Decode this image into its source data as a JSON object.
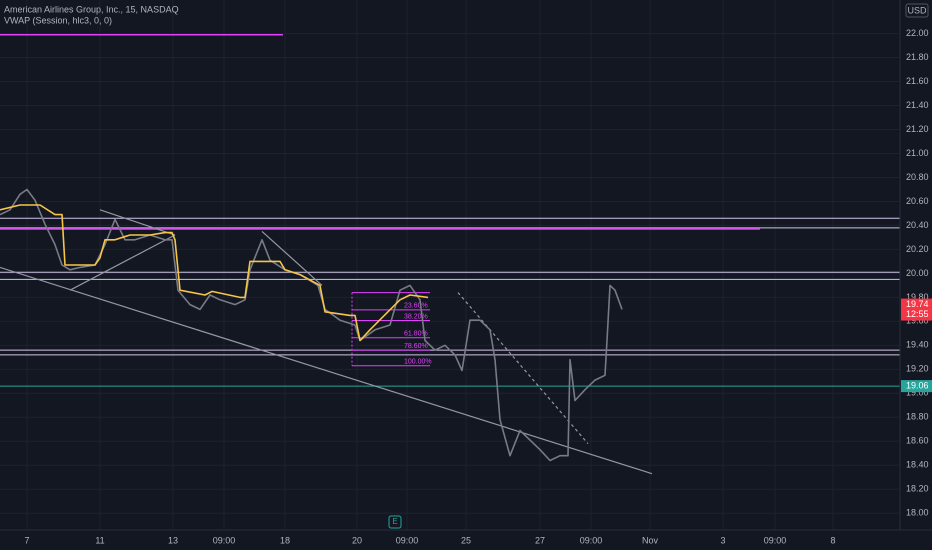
{
  "chart_data": {
    "type": "line",
    "title": "American Airlines Group, Inc., 15, NASDAQ",
    "subtitle": "VWAP (Session, hlc3, 0, 0)",
    "currency": "USD",
    "xlim": [
      0,
      900
    ],
    "ylim": [
      17.86,
      22.28
    ],
    "grid": true,
    "xticks": [
      {
        "value": 27,
        "label": "7"
      },
      {
        "value": 100,
        "label": "11"
      },
      {
        "value": 173,
        "label": "13"
      },
      {
        "value": 224,
        "label": "09:00"
      },
      {
        "value": 285,
        "label": "18"
      },
      {
        "value": 357,
        "label": "20"
      },
      {
        "value": 407,
        "label": "09:00"
      },
      {
        "value": 466,
        "label": "25"
      },
      {
        "value": 540,
        "label": "27"
      },
      {
        "value": 591,
        "label": "09:00"
      },
      {
        "value": 650,
        "label": "Nov"
      },
      {
        "value": 723,
        "label": "3"
      },
      {
        "value": 775,
        "label": "09:00"
      },
      {
        "value": 833,
        "label": "8"
      }
    ],
    "yticks": [
      {
        "value": 18,
        "label": "18.00"
      },
      {
        "value": 18.2,
        "label": "18.20"
      },
      {
        "value": 18.4,
        "label": "18.40"
      },
      {
        "value": 18.6,
        "label": "18.60"
      },
      {
        "value": 18.8,
        "label": "18.80"
      },
      {
        "value": 19,
        "label": "19.00"
      },
      {
        "value": 19.2,
        "label": "19.20"
      },
      {
        "value": 19.4,
        "label": "19.40"
      },
      {
        "value": 19.6,
        "label": "19.60"
      },
      {
        "value": 19.8,
        "label": "19.80"
      },
      {
        "value": 20,
        "label": "20.00"
      },
      {
        "value": 20.2,
        "label": "20.20"
      },
      {
        "value": 20.4,
        "label": "20.40"
      },
      {
        "value": 20.6,
        "label": "20.60"
      },
      {
        "value": 20.8,
        "label": "20.80"
      },
      {
        "value": 21,
        "label": "21.00"
      },
      {
        "value": 21.2,
        "label": "21.20"
      },
      {
        "value": 21.4,
        "label": "21.40"
      },
      {
        "value": 21.6,
        "label": "21.60"
      },
      {
        "value": 21.8,
        "label": "21.80"
      },
      {
        "value": 22,
        "label": "22.00"
      }
    ],
    "series": [
      {
        "color": "#787b86",
        "x": [
          0,
          10,
          20,
          27,
          35,
          45,
          55,
          62,
          70,
          80,
          95,
          105,
          115,
          125,
          135,
          150,
          165,
          172,
          178,
          190,
          200,
          210,
          220,
          235,
          245,
          250,
          262,
          270,
          285,
          300,
          318,
          325,
          340,
          355,
          360,
          375,
          390,
          400,
          410,
          420,
          425,
          435,
          445,
          455,
          462,
          470,
          480,
          490,
          495,
          500,
          510,
          520,
          530,
          540,
          550,
          560,
          568,
          570,
          575,
          585,
          595,
          605,
          607,
          610,
          615,
          622
        ],
        "values": [
          20.49,
          20.53,
          20.66,
          20.7,
          20.61,
          20.41,
          20.24,
          20.07,
          20.03,
          20.05,
          20.07,
          20.24,
          20.45,
          20.28,
          20.28,
          20.32,
          20.28,
          20.28,
          19.86,
          19.74,
          19.7,
          19.82,
          19.78,
          19.74,
          19.78,
          20.03,
          20.28,
          20.11,
          20.03,
          19.99,
          19.9,
          19.7,
          19.61,
          19.57,
          19.44,
          19.53,
          19.57,
          19.86,
          19.9,
          19.78,
          19.44,
          19.36,
          19.4,
          19.32,
          19.19,
          19.61,
          19.61,
          19.53,
          19.28,
          18.78,
          18.48,
          18.69,
          18.61,
          18.53,
          18.44,
          18.48,
          18.48,
          19.28,
          18.94,
          19.03,
          19.11,
          19.15,
          19.44,
          19.9,
          19.86,
          19.7
        ]
      },
      {
        "color": "#f7c548",
        "x": [
          0,
          20,
          40,
          55,
          62,
          65,
          95,
          100,
          105,
          115,
          130,
          150,
          165,
          172,
          175,
          180,
          205,
          212,
          240,
          245,
          250,
          280,
          285,
          300,
          320,
          325,
          350,
          355,
          360,
          370,
          400,
          410,
          428
        ],
        "values": [
          20.53,
          20.57,
          20.57,
          20.49,
          20.49,
          20.07,
          20.07,
          20.13,
          20.28,
          20.28,
          20.32,
          20.32,
          20.34,
          20.34,
          20.28,
          19.86,
          19.82,
          19.85,
          19.8,
          19.8,
          20.1,
          20.1,
          20.03,
          19.99,
          19.9,
          19.68,
          19.65,
          19.65,
          19.44,
          19.53,
          19.78,
          19.82,
          19.8
        ]
      }
    ],
    "levels": [
      {
        "value": 20.46,
        "color": "#d1c4e9",
        "x": [
          0,
          900
        ]
      },
      {
        "value": 20.38,
        "color": "#d1c4e9",
        "x": [
          0,
          900
        ]
      },
      {
        "value": 20.37,
        "color": "#e040fb",
        "x": [
          0,
          760
        ]
      },
      {
        "value": 20.01,
        "color": "#d1c4e9",
        "x": [
          0,
          900
        ]
      },
      {
        "value": 19.95,
        "color": "#d1c4e9",
        "x": [
          0,
          900
        ]
      },
      {
        "value": 19.36,
        "color": "#d1c4e9",
        "x": [
          0,
          900
        ]
      },
      {
        "value": 19.32,
        "color": "#d1c4e9",
        "x": [
          0,
          900
        ]
      },
      {
        "value": 19.06,
        "color": "#26a69a",
        "x": [
          0,
          900
        ]
      },
      {
        "value": 21.99,
        "color": "#e040fb",
        "x": [
          0,
          283
        ]
      }
    ],
    "trendlines": [
      {
        "x": [
          0,
          652
        ],
        "y": [
          20.05,
          18.33
        ],
        "color": "#9598a1"
      },
      {
        "x": [
          100,
          175
        ],
        "y": [
          20.53,
          20.32
        ],
        "color": "#9598a1"
      },
      {
        "x": [
          70,
          175
        ],
        "y": [
          19.86,
          20.32
        ],
        "color": "#9598a1"
      },
      {
        "x": [
          262,
          322
        ],
        "y": [
          20.35,
          19.9
        ],
        "color": "#9598a1"
      },
      {
        "x": [
          458,
          588
        ],
        "y": [
          19.84,
          18.58
        ],
        "color": "#9598a1",
        "dashed": true
      }
    ],
    "fib": {
      "x": [
        352,
        430
      ],
      "high": 19.84,
      "low": 19.23,
      "color": "#e040fb",
      "levels": [
        {
          "value": 23.6,
          "label": "23.60%"
        },
        {
          "value": 38.2,
          "label": "38.20%"
        },
        {
          "value": 61.8,
          "label": "61.80%"
        },
        {
          "value": 78.6,
          "label": "78.60%"
        },
        {
          "value": 100,
          "label": "100.00%"
        }
      ]
    },
    "last_price": {
      "value": 19.74,
      "time": "12:55",
      "color": "#f23645"
    },
    "marker_price": {
      "value": 19.06,
      "color": "#26a69a"
    }
  }
}
